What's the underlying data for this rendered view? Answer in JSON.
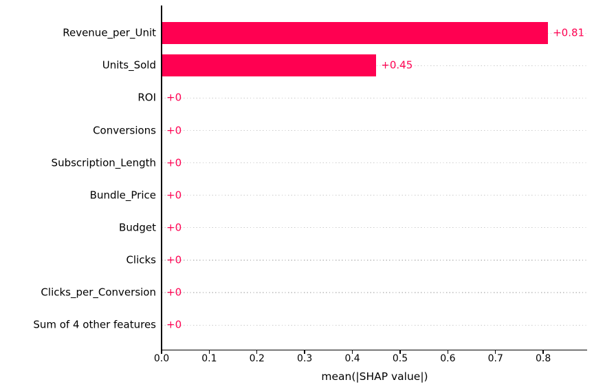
{
  "chart_data": {
    "type": "bar",
    "orientation": "horizontal",
    "title": "",
    "xlabel": "mean(|SHAP value|)",
    "ylabel": "",
    "categories": [
      "Revenue_per_Unit",
      "Units_Sold",
      "ROI",
      "Conversions",
      "Subscription_Length",
      "Bundle_Price",
      "Budget",
      "Clicks",
      "Clicks_per_Conversion",
      "Sum of 4 other features"
    ],
    "values": [
      0.81,
      0.45,
      0,
      0,
      0,
      0,
      0,
      0,
      0,
      0
    ],
    "value_labels": [
      "+0.81",
      "+0.45",
      "+0",
      "+0",
      "+0",
      "+0",
      "+0",
      "+0",
      "+0",
      "+0"
    ],
    "x_ticks": [
      "0.0",
      "0.1",
      "0.2",
      "0.3",
      "0.4",
      "0.5",
      "0.6",
      "0.7",
      "0.8"
    ],
    "x_tick_values": [
      0.0,
      0.1,
      0.2,
      0.3,
      0.4,
      0.5,
      0.6,
      0.7,
      0.8
    ],
    "xlim": [
      0.0,
      0.892
    ],
    "grid": "horizontal dotted line per category row",
    "legend": "none",
    "colors": {
      "bar": "#ff0051",
      "value_label": "#ff0051",
      "axis": "#000000",
      "gridline": "#c9c9c9",
      "tick_label": "#000000",
      "background": "#ffffff"
    }
  }
}
